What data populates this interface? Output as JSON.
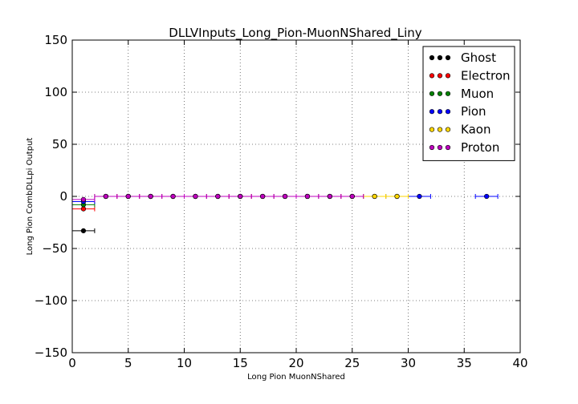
{
  "chart_data": {
    "type": "scatter",
    "title": "DLLVInputs_Long_Pion-MuonNShared_Liny",
    "xlabel": "Long Pion MuonNShared",
    "ylabel": "Long Pion CombDLLpi Output",
    "xlim": [
      0,
      40
    ],
    "ylim": [
      -150,
      150
    ],
    "xticks": [
      0,
      5,
      10,
      15,
      20,
      25,
      30,
      35,
      40
    ],
    "yticks": [
      -150,
      -100,
      -50,
      0,
      50,
      100,
      150
    ],
    "xtick_labels": [
      "0",
      "5",
      "10",
      "15",
      "20",
      "25",
      "30",
      "35",
      "40"
    ],
    "ytick_labels": [
      "−150",
      "−100",
      "−50",
      "0",
      "50",
      "100",
      "150"
    ],
    "grid": true,
    "legend_position": "top-right",
    "series": [
      {
        "name": "Ghost",
        "color": "#000000",
        "points": [
          {
            "x": 1,
            "y": -33,
            "xerr": 1
          }
        ]
      },
      {
        "name": "Electron",
        "color": "#ff0000",
        "points": [
          {
            "x": 1,
            "y": -12,
            "xerr": 1
          }
        ]
      },
      {
        "name": "Muon",
        "color": "#008000",
        "points": [
          {
            "x": 1,
            "y": -8,
            "xerr": 1
          }
        ]
      },
      {
        "name": "Pion",
        "color": "#0000ff",
        "points": [
          {
            "x": 1,
            "y": -5,
            "xerr": 1
          },
          {
            "x": 3,
            "y": 0,
            "xerr": 1
          },
          {
            "x": 5,
            "y": 0,
            "xerr": 1
          },
          {
            "x": 7,
            "y": 0,
            "xerr": 1
          },
          {
            "x": 9,
            "y": 0,
            "xerr": 1
          },
          {
            "x": 11,
            "y": 0,
            "xerr": 1
          },
          {
            "x": 13,
            "y": 0,
            "xerr": 1
          },
          {
            "x": 15,
            "y": 0,
            "xerr": 1
          },
          {
            "x": 17,
            "y": 0,
            "xerr": 1
          },
          {
            "x": 19,
            "y": 0,
            "xerr": 1
          },
          {
            "x": 21,
            "y": 0,
            "xerr": 1
          },
          {
            "x": 23,
            "y": 0,
            "xerr": 1
          },
          {
            "x": 25,
            "y": 0,
            "xerr": 1
          },
          {
            "x": 27,
            "y": 0,
            "xerr": 1
          },
          {
            "x": 29,
            "y": 0,
            "xerr": 1
          },
          {
            "x": 31,
            "y": 0,
            "xerr": 1
          },
          {
            "x": 37,
            "y": 0,
            "xerr": 1
          }
        ]
      },
      {
        "name": "Kaon",
        "color": "#ffd700",
        "points": [
          {
            "x": 3,
            "y": 0,
            "xerr": 1
          },
          {
            "x": 5,
            "y": 0,
            "xerr": 1
          },
          {
            "x": 7,
            "y": 0,
            "xerr": 1
          },
          {
            "x": 9,
            "y": 0,
            "xerr": 1
          },
          {
            "x": 11,
            "y": 0,
            "xerr": 1
          },
          {
            "x": 13,
            "y": 0,
            "xerr": 1
          },
          {
            "x": 15,
            "y": 0,
            "xerr": 1
          },
          {
            "x": 17,
            "y": 0,
            "xerr": 1
          },
          {
            "x": 19,
            "y": 0,
            "xerr": 1
          },
          {
            "x": 21,
            "y": 0,
            "xerr": 1
          },
          {
            "x": 23,
            "y": 0,
            "xerr": 1
          },
          {
            "x": 25,
            "y": 0,
            "xerr": 1
          },
          {
            "x": 27,
            "y": 0,
            "xerr": 1
          },
          {
            "x": 29,
            "y": 0,
            "xerr": 1
          }
        ]
      },
      {
        "name": "Proton",
        "color": "#bf00bf",
        "points": [
          {
            "x": 1,
            "y": -3,
            "xerr": 1
          },
          {
            "x": 3,
            "y": 0,
            "xerr": 1
          },
          {
            "x": 5,
            "y": 0,
            "xerr": 1
          },
          {
            "x": 7,
            "y": 0,
            "xerr": 1
          },
          {
            "x": 9,
            "y": 0,
            "xerr": 1
          },
          {
            "x": 11,
            "y": 0,
            "xerr": 1
          },
          {
            "x": 13,
            "y": 0,
            "xerr": 1
          },
          {
            "x": 15,
            "y": 0,
            "xerr": 1
          },
          {
            "x": 17,
            "y": 0,
            "xerr": 1
          },
          {
            "x": 19,
            "y": 0,
            "xerr": 1
          },
          {
            "x": 21,
            "y": 0,
            "xerr": 1
          },
          {
            "x": 23,
            "y": 0,
            "xerr": 1
          },
          {
            "x": 25,
            "y": 0,
            "xerr": 1
          }
        ]
      }
    ]
  }
}
